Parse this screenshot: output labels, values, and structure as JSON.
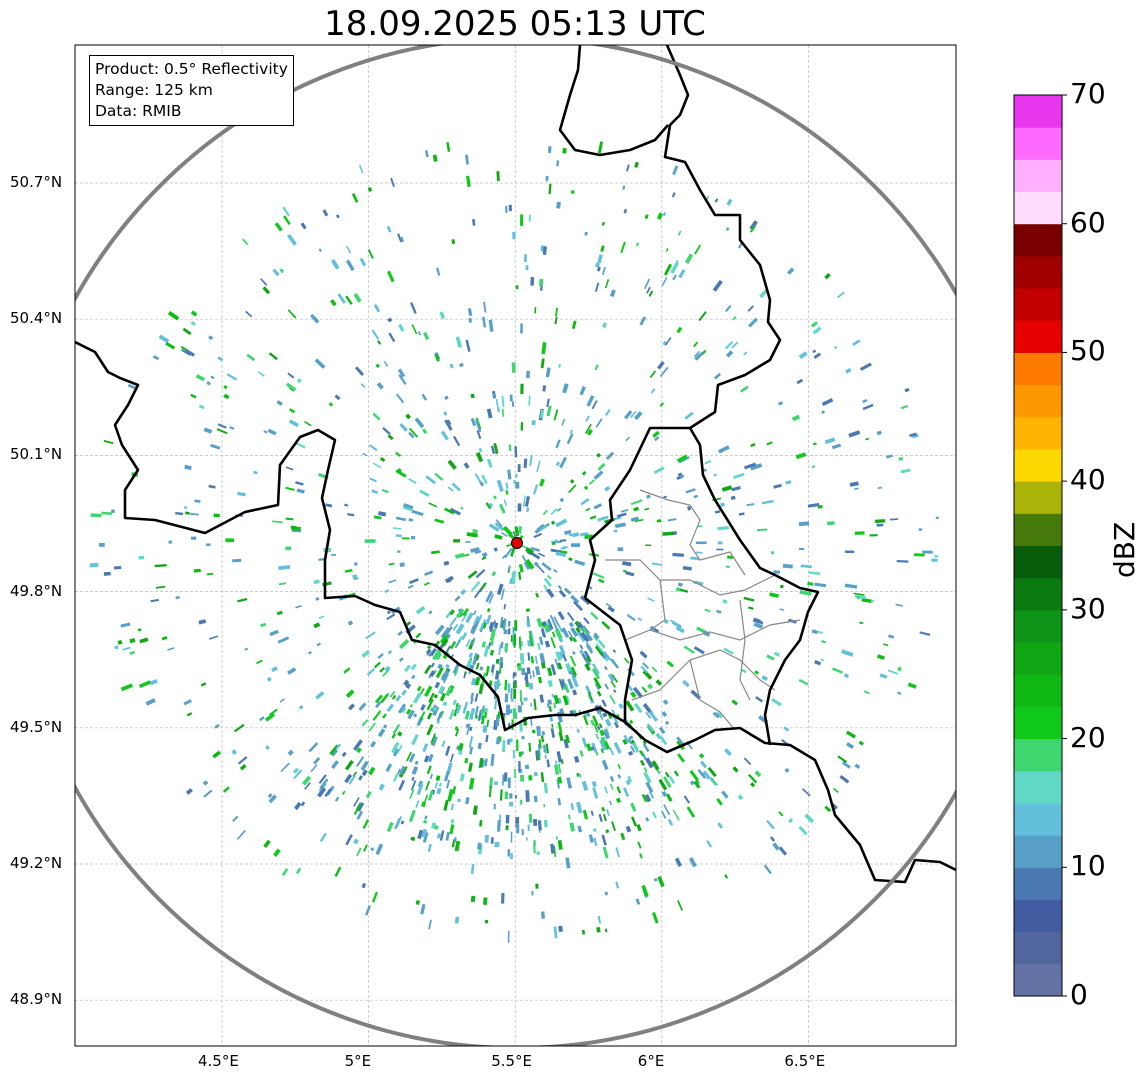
{
  "title": "18.09.2025 05:13 UTC",
  "info": {
    "product": "Product: 0.5° Reflectivity",
    "range": "Range: 125 km",
    "source": "Data: RMIB"
  },
  "axes": {
    "lon_ticks": [
      {
        "value": 4.5,
        "label": "4.5°E"
      },
      {
        "value": 5.0,
        "label": "5°E"
      },
      {
        "value": 5.5,
        "label": "5.5°E"
      },
      {
        "value": 6.0,
        "label": "6°E"
      },
      {
        "value": 6.5,
        "label": "6.5°E"
      }
    ],
    "lat_ticks": [
      {
        "value": 50.7,
        "label": "50.7°N"
      },
      {
        "value": 50.4,
        "label": "50.4°N"
      },
      {
        "value": 50.1,
        "label": "50.1°N"
      },
      {
        "value": 49.8,
        "label": "49.8°N"
      },
      {
        "value": 49.5,
        "label": "49.5°N"
      },
      {
        "value": 49.2,
        "label": "49.2°N"
      },
      {
        "value": 48.9,
        "label": "48.9°N"
      }
    ],
    "lon_range": [
      4.0,
      7.0
    ],
    "lat_range": [
      48.8,
      50.9
    ]
  },
  "radar": {
    "lon": 5.505,
    "lat": 49.914,
    "range_km": 125
  },
  "colorbar": {
    "label": "dBZ",
    "min": 0,
    "max": 70,
    "step": 2.5,
    "ticks": [
      "0",
      "10",
      "20",
      "30",
      "40",
      "50",
      "60",
      "70"
    ],
    "colors": [
      "#6473a5",
      "#52669e",
      "#415ca0",
      "#4a78b2",
      "#58a0c8",
      "#62c0dc",
      "#60d8c6",
      "#3ed66e",
      "#10c81a",
      "#10b814",
      "#10a614",
      "#0e9416",
      "#0a7a10",
      "#065e0c",
      "#467a0c",
      "#aab408",
      "#fed800",
      "#feb400",
      "#fe9800",
      "#fe7a00",
      "#e60000",
      "#c20000",
      "#a00000",
      "#7a0000",
      "#fedcfe",
      "#feb0fe",
      "#fe6afe",
      "#ea36ee"
    ]
  }
}
